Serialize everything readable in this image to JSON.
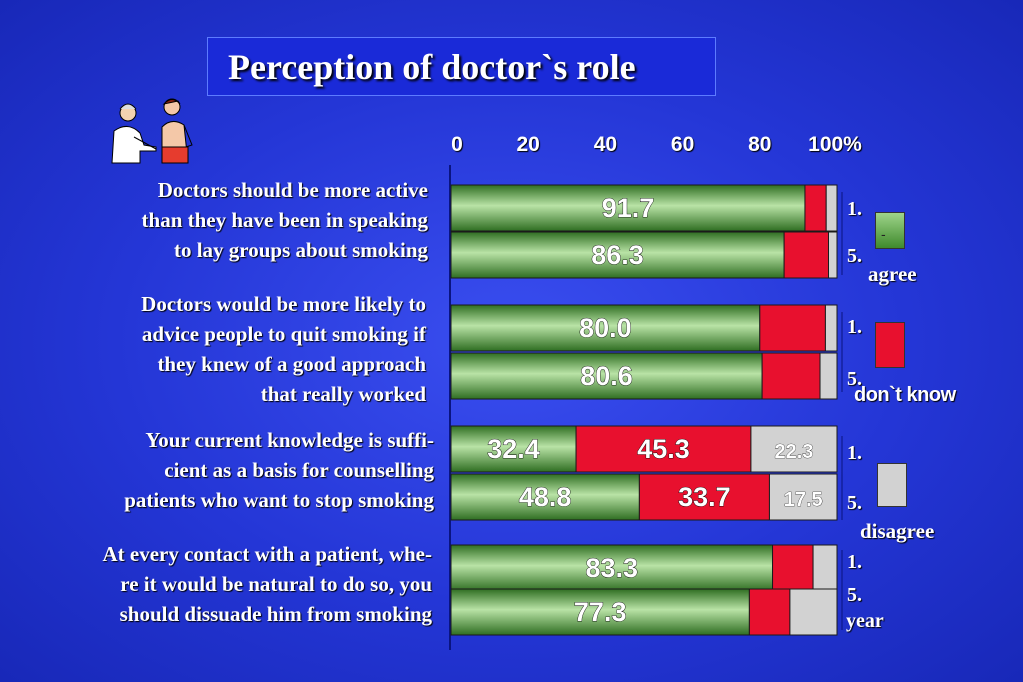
{
  "title": "Perception of doctor`s role",
  "questions": [
    "Doctors should be more active\nthan they have been in speaking\nto lay groups about smoking",
    "Doctors would be more likely to\nadvice people to quit smoking if\nthey knew of a good approach\nthat really worked",
    "Your current knowledge is suffi-\ncient as a basis for counselling\npatients who want to stop smoking",
    "At every contact with a patient, whe-\nre it would be natural to do so, you\nshould dissuade him from smoking"
  ],
  "side_labels": {
    "first": "1.",
    "fifth": "5.",
    "year": "year"
  },
  "legend": {
    "agree": "agree",
    "agree_mark": "-",
    "dont_know": "don`t know",
    "disagree": "disagree"
  },
  "colors": {
    "agree": "#4e9a3a",
    "dont_know": "#e8102e",
    "disagree": "#d2d2d2",
    "background": "#2436d6"
  },
  "chart_data": {
    "type": "bar",
    "orientation": "horizontal",
    "stacked": true,
    "xlim": [
      0,
      100
    ],
    "x_ticks": [
      "0",
      "20",
      "40",
      "60",
      "80",
      "100%"
    ],
    "categories": [
      "Doctors should be more active than they have been in speaking to lay groups about smoking",
      "Doctors would be more likely to advice people to quit smoking if they knew of a good approach that really worked",
      "Your current knowledge is suffi- cient as a basis for counselling patients who want to stop smoking",
      "At every contact with a patient, whe- re it would be natural to do so, you should dissuade him from smoking"
    ],
    "groups": [
      {
        "year": "1.",
        "values": [
          91.7,
          5.5,
          2.8
        ],
        "labels": [
          "91.7",
          "",
          ""
        ]
      },
      {
        "year": "5.",
        "values": [
          86.3,
          11.5,
          2.2
        ],
        "labels": [
          "86.3",
          "",
          ""
        ]
      },
      {
        "year": "1.",
        "values": [
          80.0,
          17.0,
          3.0
        ],
        "labels": [
          "80.0",
          "",
          ""
        ]
      },
      {
        "year": "5.",
        "values": [
          80.6,
          15.0,
          4.4
        ],
        "labels": [
          "80.6",
          "",
          ""
        ]
      },
      {
        "year": "1.",
        "values": [
          32.4,
          45.3,
          22.3
        ],
        "labels": [
          "32.4",
          "45.3",
          "22.3"
        ]
      },
      {
        "year": "5.",
        "values": [
          48.8,
          33.7,
          17.5
        ],
        "labels": [
          "48.8",
          "33.7",
          "17.5"
        ]
      },
      {
        "year": "1.",
        "values": [
          83.3,
          10.5,
          6.2
        ],
        "labels": [
          "83.3",
          "",
          ""
        ]
      },
      {
        "year": "5.",
        "values": [
          77.3,
          10.5,
          12.2
        ],
        "labels": [
          "77.3",
          "",
          ""
        ]
      }
    ],
    "series": [
      {
        "name": "agree"
      },
      {
        "name": "don`t know"
      },
      {
        "name": "disagree"
      }
    ],
    "legend_position": "right",
    "grid": false
  }
}
